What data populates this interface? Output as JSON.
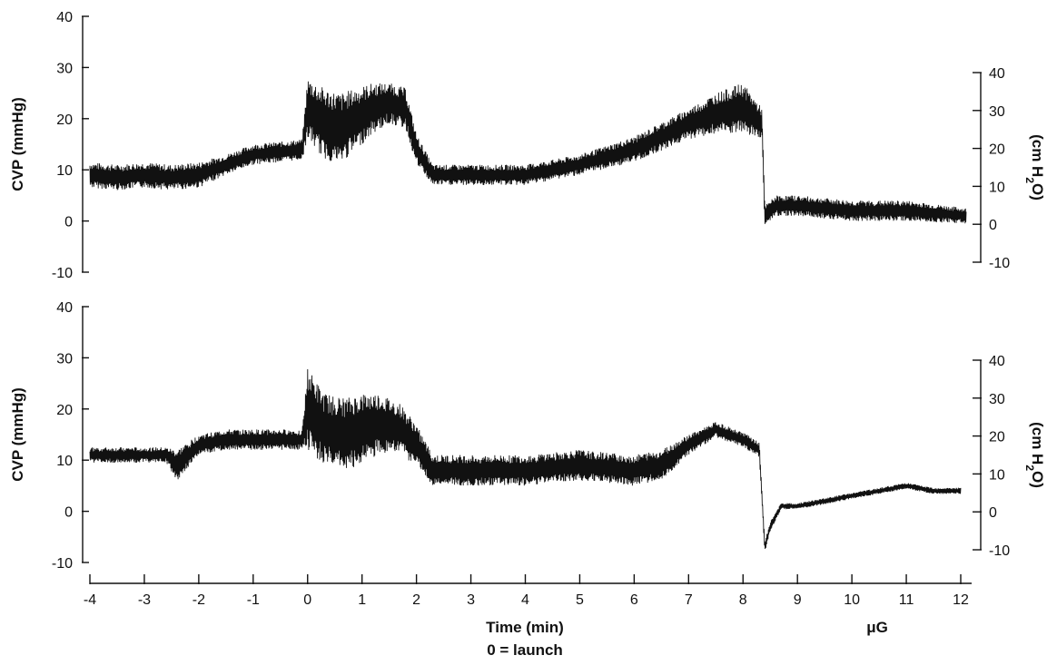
{
  "chart_data": [
    {
      "type": "line",
      "panel": "top",
      "ylabel": "CVP (mmHg)",
      "ylim": [
        -10,
        40
      ],
      "yticks": [
        -10,
        0,
        10,
        20,
        30,
        40
      ],
      "ylabel_right": "(cm H2O)",
      "ylim_right": [
        -10,
        40
      ],
      "yticks_right": [
        -10,
        0,
        10,
        20,
        30,
        40
      ],
      "series": [
        {
          "x": [
            -4,
            -3.5,
            -3,
            -2.5,
            -2,
            -1.5,
            -1,
            -0.5,
            -0.1,
            0,
            0.3,
            0.6,
            0.9,
            1.2,
            1.5,
            1.8,
            2,
            2.3,
            3,
            4,
            5,
            6,
            7,
            7.5,
            8,
            8.35,
            8.4,
            8.6,
            9,
            10,
            11,
            12.1
          ],
          "y": [
            9,
            8.5,
            9,
            8.5,
            9,
            11,
            13,
            13.5,
            14,
            22,
            19,
            18,
            20,
            22,
            23,
            22,
            14,
            9,
            9,
            9,
            11,
            14,
            19,
            21,
            22,
            19,
            1,
            3,
            3,
            2,
            2,
            1
          ],
          "spread": [
            2.5,
            2.5,
            2.5,
            2.5,
            2.5,
            2,
            2,
            2,
            2,
            6,
            7,
            7,
            6,
            5,
            4,
            4,
            3,
            2,
            2,
            2,
            2,
            2.5,
            3,
            4,
            5,
            3,
            2,
            2,
            2,
            2,
            2,
            1.5
          ]
        }
      ]
    },
    {
      "type": "line",
      "panel": "bottom",
      "ylabel": "CVP (mmHg)",
      "ylim": [
        -10,
        40
      ],
      "yticks": [
        -10,
        0,
        10,
        20,
        30,
        40
      ],
      "ylabel_right": "(cm H2O)",
      "ylim_right": [
        -10,
        40
      ],
      "yticks_right": [
        -10,
        0,
        10,
        20,
        30,
        40
      ],
      "xlabel": "Time (min)",
      "xlabel_sub": "0 = launch",
      "xlabel_right": "μG",
      "xlim": [
        -4,
        12
      ],
      "xticks": [
        -4,
        -3,
        -2,
        -1,
        0,
        1,
        2,
        3,
        4,
        5,
        6,
        7,
        8,
        9,
        10,
        11,
        12
      ],
      "series": [
        {
          "x": [
            -4,
            -3.5,
            -3,
            -2.6,
            -2.4,
            -2,
            -1.5,
            -1,
            -0.5,
            -0.1,
            0,
            0.3,
            0.7,
            1,
            1.3,
            1.7,
            2,
            2.3,
            3,
            4,
            5,
            6,
            6.5,
            7,
            7.5,
            8,
            8.3,
            8.4,
            8.5,
            8.7,
            9,
            9.5,
            10,
            10.5,
            11,
            11.5,
            12
          ],
          "y": [
            11,
            11,
            11,
            11,
            9,
            13,
            14,
            14,
            14,
            14,
            20,
            16,
            15,
            16,
            17,
            16,
            13,
            8,
            8,
            8,
            9,
            8,
            9,
            13,
            16,
            14,
            12,
            -7,
            -3,
            1,
            1,
            2,
            3,
            4,
            5,
            4,
            4
          ],
          "spread": [
            1.5,
            1.5,
            1.5,
            1.5,
            3,
            2,
            2,
            2,
            2,
            2,
            8,
            7,
            7,
            7,
            6,
            5,
            4,
            3,
            3,
            3,
            3,
            3,
            3,
            2,
            1.5,
            1.5,
            1.5,
            1,
            1,
            0.6,
            0.6,
            0.6,
            0.6,
            0.6,
            0.6,
            0.6,
            0.6
          ]
        }
      ]
    }
  ]
}
